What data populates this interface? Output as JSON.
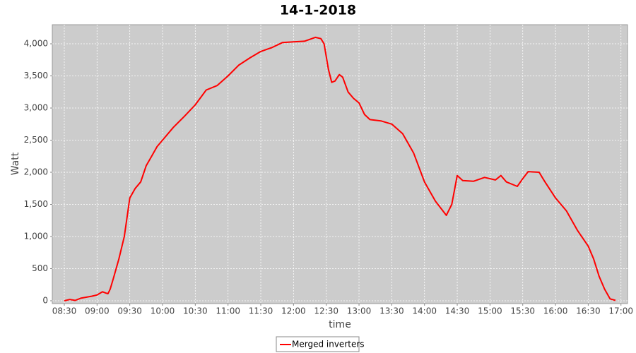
{
  "chart_data": {
    "type": "line",
    "title": "14-1-2018",
    "x_label": "time",
    "y_label": "Watt",
    "x": [
      "08:30",
      "08:35",
      "08:40",
      "08:45",
      "08:50",
      "08:55",
      "09:00",
      "09:05",
      "09:08",
      "09:10",
      "09:12",
      "09:15",
      "09:20",
      "09:25",
      "09:30",
      "09:35",
      "09:40",
      "09:45",
      "09:50",
      "09:55",
      "10:00",
      "10:10",
      "10:20",
      "10:30",
      "10:40",
      "10:50",
      "11:00",
      "11:10",
      "11:20",
      "11:30",
      "11:40",
      "11:50",
      "12:00",
      "12:10",
      "12:20",
      "12:25",
      "12:28",
      "12:32",
      "12:35",
      "12:38",
      "12:42",
      "12:45",
      "12:50",
      "12:55",
      "13:00",
      "13:05",
      "13:10",
      "13:20",
      "13:30",
      "13:40",
      "13:50",
      "14:00",
      "14:10",
      "14:20",
      "14:25",
      "14:30",
      "14:35",
      "14:45",
      "14:55",
      "15:05",
      "15:10",
      "15:15",
      "15:25",
      "15:30",
      "15:35",
      "15:45",
      "15:50",
      "16:00",
      "16:10",
      "16:20",
      "16:30",
      "16:35",
      "16:40",
      "16:45",
      "16:50",
      "16:55"
    ],
    "series": [
      {
        "name": "Merged inverters",
        "color": "#ff0000",
        "values": [
          0,
          20,
          5,
          40,
          55,
          70,
          90,
          140,
          120,
          110,
          180,
          350,
          650,
          1000,
          1600,
          1750,
          1850,
          2100,
          2250,
          2400,
          2500,
          2700,
          2870,
          3050,
          3280,
          3350,
          3500,
          3670,
          3780,
          3880,
          3940,
          4020,
          4030,
          4040,
          4100,
          4080,
          4000,
          3600,
          3400,
          3420,
          3520,
          3480,
          3250,
          3150,
          3080,
          2900,
          2820,
          2800,
          2750,
          2600,
          2300,
          1850,
          1550,
          1330,
          1500,
          1950,
          1870,
          1860,
          1920,
          1880,
          1950,
          1850,
          1780,
          1900,
          2010,
          2000,
          1860,
          1600,
          1400,
          1100,
          850,
          650,
          380,
          180,
          30,
          5
        ]
      }
    ],
    "xlim": [
      "08:19",
      "17:06"
    ],
    "xticks": [
      "08:30",
      "09:00",
      "09:30",
      "10:00",
      "10:30",
      "11:00",
      "11:30",
      "12:00",
      "12:30",
      "13:00",
      "13:30",
      "14:00",
      "14:30",
      "15:00",
      "15:30",
      "16:00",
      "16:30",
      "17:00"
    ],
    "ylim": [
      -44,
      4297
    ],
    "yticks": [
      0,
      500,
      {
        "value": 1000,
        "label": "1,000"
      },
      {
        "value": 1500,
        "label": "1,500"
      },
      {
        "value": 2000,
        "label": "2,000"
      },
      {
        "value": 2500,
        "label": "2,500"
      },
      {
        "value": 3000,
        "label": "3,000"
      },
      {
        "value": 3500,
        "label": "3,500"
      },
      {
        "value": 4000,
        "label": "4,000"
      }
    ],
    "grid": true,
    "legend": "bottom"
  }
}
